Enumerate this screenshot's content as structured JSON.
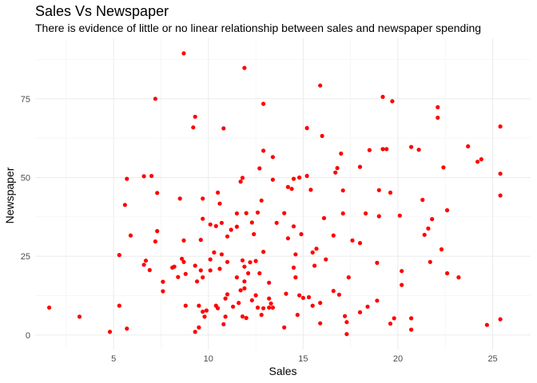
{
  "chart_data": {
    "type": "scatter",
    "title": "Sales Vs Newspaper",
    "subtitle": "There is evidence of little or no linear relationship between sales and newspaper spending",
    "xlabel": "Sales",
    "ylabel": "Newspaper",
    "xlim": [
      0.86,
      27.0
    ],
    "ylim": [
      -4.6,
      94.2
    ],
    "xticks": [
      5,
      10,
      15,
      20,
      25
    ],
    "yticks": [
      0,
      25,
      50,
      75
    ],
    "grid": true,
    "point_color": "#ff0000",
    "points": [
      [
        1.6,
        8.7
      ],
      [
        3.2,
        5.8
      ],
      [
        4.8,
        1.0
      ],
      [
        5.3,
        9.3
      ],
      [
        5.3,
        25.4
      ],
      [
        5.6,
        41.3
      ],
      [
        5.7,
        49.6
      ],
      [
        5.7,
        2.0
      ],
      [
        5.9,
        31.6
      ],
      [
        6.6,
        50.4
      ],
      [
        6.6,
        22.3
      ],
      [
        6.7,
        23.6
      ],
      [
        6.9,
        20.6
      ],
      [
        7.0,
        50.5
      ],
      [
        7.2,
        75.0
      ],
      [
        7.2,
        29.7
      ],
      [
        7.3,
        45.1
      ],
      [
        7.3,
        33.0
      ],
      [
        7.6,
        16.9
      ],
      [
        7.6,
        13.9
      ],
      [
        8.1,
        21.4
      ],
      [
        8.2,
        21.7
      ],
      [
        8.4,
        18.4
      ],
      [
        8.5,
        43.3
      ],
      [
        8.6,
        24.2
      ],
      [
        8.7,
        23.2
      ],
      [
        8.7,
        89.4
      ],
      [
        8.7,
        30.0
      ],
      [
        8.8,
        9.3
      ],
      [
        8.8,
        19.4
      ],
      [
        9.2,
        65.9
      ],
      [
        9.3,
        69.3
      ],
      [
        9.3,
        22.0
      ],
      [
        9.3,
        1.0
      ],
      [
        9.4,
        17.0
      ],
      [
        9.5,
        9.3
      ],
      [
        9.5,
        2.4
      ],
      [
        9.6,
        30.2
      ],
      [
        9.6,
        20.5
      ],
      [
        9.7,
        18.3
      ],
      [
        9.7,
        43.3
      ],
      [
        9.7,
        7.4
      ],
      [
        9.7,
        36.9
      ],
      [
        9.8,
        5.8
      ],
      [
        9.9,
        7.8
      ],
      [
        10.1,
        35.1
      ],
      [
        10.1,
        20.5
      ],
      [
        10.1,
        24.0
      ],
      [
        10.3,
        26.2
      ],
      [
        10.4,
        9.3
      ],
      [
        10.4,
        34.6
      ],
      [
        10.5,
        45.2
      ],
      [
        10.5,
        8.5
      ],
      [
        10.6,
        41.7
      ],
      [
        10.6,
        21.0
      ],
      [
        10.7,
        35.6
      ],
      [
        10.7,
        25.6
      ],
      [
        10.8,
        3.4
      ],
      [
        10.8,
        65.6
      ],
      [
        10.9,
        5.8
      ],
      [
        10.9,
        11.6
      ],
      [
        11.0,
        31.3
      ],
      [
        11.0,
        12.9
      ],
      [
        11.0,
        23.2
      ],
      [
        11.2,
        33.4
      ],
      [
        11.3,
        9.0
      ],
      [
        11.5,
        18.3
      ],
      [
        11.5,
        38.6
      ],
      [
        11.5,
        34.4
      ],
      [
        11.6,
        10.2
      ],
      [
        11.7,
        14.2
      ],
      [
        11.7,
        48.7
      ],
      [
        11.8,
        49.9
      ],
      [
        11.8,
        5.9
      ],
      [
        11.8,
        23.7
      ],
      [
        11.9,
        21.7
      ],
      [
        11.9,
        14.8
      ],
      [
        11.9,
        17.0
      ],
      [
        11.9,
        84.8
      ],
      [
        12.0,
        38.7
      ],
      [
        12.0,
        5.4
      ],
      [
        12.1,
        19.6
      ],
      [
        12.2,
        23.1
      ],
      [
        12.3,
        35.7
      ],
      [
        12.3,
        11.0
      ],
      [
        12.4,
        32.0
      ],
      [
        12.5,
        23.5
      ],
      [
        12.5,
        12.6
      ],
      [
        12.6,
        8.7
      ],
      [
        12.6,
        38.9
      ],
      [
        12.7,
        52.9
      ],
      [
        12.7,
        19.6
      ],
      [
        12.8,
        42.7
      ],
      [
        12.8,
        6.4
      ],
      [
        12.9,
        8.5
      ],
      [
        12.9,
        73.4
      ],
      [
        12.9,
        58.5
      ],
      [
        12.9,
        26.4
      ],
      [
        13.2,
        16.6
      ],
      [
        13.2,
        11.6
      ],
      [
        13.2,
        8.7
      ],
      [
        13.3,
        10.0
      ],
      [
        13.4,
        49.3
      ],
      [
        13.4,
        56.5
      ],
      [
        13.4,
        8.7
      ],
      [
        13.6,
        35.6
      ],
      [
        14.0,
        2.4
      ],
      [
        14.0,
        38.7
      ],
      [
        14.1,
        13.1
      ],
      [
        14.2,
        47.0
      ],
      [
        14.2,
        30.7
      ],
      [
        14.4,
        46.4
      ],
      [
        14.5,
        21.4
      ],
      [
        14.5,
        34.5
      ],
      [
        14.5,
        49.6
      ],
      [
        14.6,
        18.3
      ],
      [
        14.6,
        25.6
      ],
      [
        14.7,
        6.4
      ],
      [
        14.8,
        50.0
      ],
      [
        14.8,
        12.6
      ],
      [
        14.9,
        32.0
      ],
      [
        15.0,
        11.8
      ],
      [
        15.2,
        50.5
      ],
      [
        15.2,
        65.7
      ],
      [
        15.3,
        12.0
      ],
      [
        15.4,
        46.1
      ],
      [
        15.5,
        26.2
      ],
      [
        15.5,
        9.3
      ],
      [
        15.6,
        22.0
      ],
      [
        15.7,
        27.4
      ],
      [
        15.9,
        79.2
      ],
      [
        15.9,
        3.7
      ],
      [
        15.9,
        10.2
      ],
      [
        16.0,
        63.2
      ],
      [
        16.1,
        37.1
      ],
      [
        16.2,
        24.0
      ],
      [
        16.6,
        14.0
      ],
      [
        16.6,
        31.6
      ],
      [
        16.7,
        51.6
      ],
      [
        16.8,
        53.0
      ],
      [
        16.9,
        12.8
      ],
      [
        17.0,
        57.6
      ],
      [
        17.1,
        38.6
      ],
      [
        17.1,
        45.9
      ],
      [
        17.2,
        6.0
      ],
      [
        17.3,
        0.3
      ],
      [
        17.3,
        4.1
      ],
      [
        17.4,
        18.3
      ],
      [
        17.6,
        30.0
      ],
      [
        18.0,
        53.4
      ],
      [
        18.0,
        29.2
      ],
      [
        18.0,
        7.2
      ],
      [
        18.3,
        38.6
      ],
      [
        18.4,
        9.0
      ],
      [
        18.5,
        58.7
      ],
      [
        18.9,
        10.9
      ],
      [
        18.9,
        22.9
      ],
      [
        19.0,
        46.0
      ],
      [
        19.0,
        37.7
      ],
      [
        19.2,
        75.6
      ],
      [
        19.2,
        59.0
      ],
      [
        19.4,
        59.0
      ],
      [
        19.6,
        45.2
      ],
      [
        19.6,
        3.6
      ],
      [
        19.7,
        74.2
      ],
      [
        19.8,
        5.3
      ],
      [
        20.1,
        37.9
      ],
      [
        20.2,
        20.3
      ],
      [
        20.2,
        15.9
      ],
      [
        20.7,
        59.7
      ],
      [
        20.7,
        5.3
      ],
      [
        20.7,
        1.7
      ],
      [
        21.1,
        58.8
      ],
      [
        21.3,
        42.9
      ],
      [
        21.4,
        31.8
      ],
      [
        21.6,
        33.8
      ],
      [
        21.7,
        23.2
      ],
      [
        21.8,
        36.8
      ],
      [
        22.1,
        72.3
      ],
      [
        22.1,
        69.0
      ],
      [
        22.3,
        27.2
      ],
      [
        22.4,
        53.2
      ],
      [
        22.6,
        19.6
      ],
      [
        22.6,
        39.6
      ],
      [
        23.2,
        18.3
      ],
      [
        23.7,
        59.9
      ],
      [
        24.2,
        55.0
      ],
      [
        24.4,
        55.8
      ],
      [
        24.7,
        3.2
      ],
      [
        25.4,
        66.2
      ],
      [
        25.4,
        51.2
      ],
      [
        25.4,
        44.3
      ],
      [
        25.4,
        5.0
      ]
    ]
  }
}
